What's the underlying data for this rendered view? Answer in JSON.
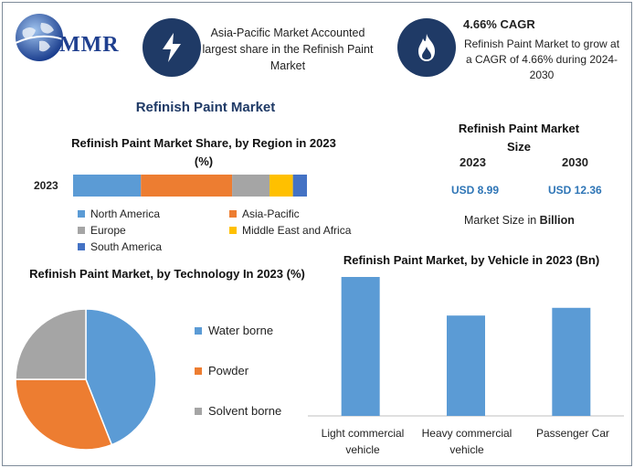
{
  "brand": {
    "logo_text": "MMR",
    "colors": {
      "navy": "#1f3a66",
      "brand_blue": "#1f3f8f",
      "value_blue": "#2e75b6"
    }
  },
  "highlights": [
    {
      "icon": "lightning-bolt-icon",
      "text": "Asia-Pacific Market Accounted largest share in the Refinish Paint Market"
    },
    {
      "icon": "flame-icon",
      "title": "4.66% CAGR",
      "text": "Refinish Paint Market to grow at a CAGR of 4.66% during 2024-2030"
    }
  ],
  "main_title": "Refinish Paint Market",
  "market_size": {
    "title": "Refinish Paint Market Size",
    "years": [
      "2023",
      "2030"
    ],
    "values": [
      "USD 8.99",
      "USD 12.36"
    ],
    "unit_prefix": "Market Size in ",
    "unit_bold": "Billion"
  },
  "chart_data": [
    {
      "type": "bar",
      "orientation": "horizontal-stacked",
      "title": "Refinish Paint Market Share, by Region in 2023 (%)",
      "categories": [
        "2023"
      ],
      "series": [
        {
          "name": "North America",
          "values": [
            29
          ],
          "color": "#5b9bd5"
        },
        {
          "name": "Asia-Pacific",
          "values": [
            39
          ],
          "color": "#ed7d31"
        },
        {
          "name": "Europe",
          "values": [
            16
          ],
          "color": "#a5a5a5"
        },
        {
          "name": "Middle East and Africa",
          "values": [
            10
          ],
          "color": "#ffc000"
        },
        {
          "name": "South America",
          "values": [
            6
          ],
          "color": "#4472c4"
        }
      ],
      "xlim": [
        0,
        100
      ],
      "legend": "bottom"
    },
    {
      "type": "pie",
      "title": "Refinish Paint Market, by Technology In 2023 (%)",
      "labels": [
        "Water borne",
        "Powder",
        "Solvent borne"
      ],
      "values": [
        44,
        31,
        25
      ],
      "colors": [
        "#5b9bd5",
        "#ed7d31",
        "#a5a5a5"
      ],
      "legend": "right"
    },
    {
      "type": "bar",
      "title": "Refinish Paint Market, by Vehicle in 2023 (Bn)",
      "categories": [
        "Light commercial vehicle",
        "Heavy commercial vehicle",
        "Passenger Car"
      ],
      "values": [
        3.6,
        2.6,
        2.8
      ],
      "color": "#5b9bd5",
      "ylim": [
        0,
        3.6
      ]
    }
  ]
}
